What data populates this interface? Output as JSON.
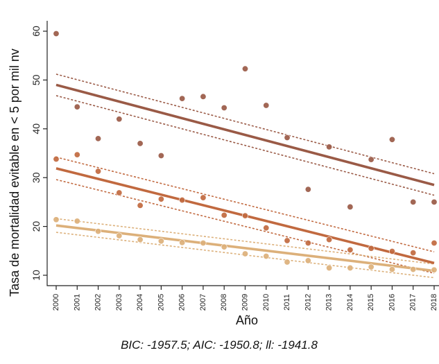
{
  "chart_data": {
    "type": "scatter",
    "title": "",
    "xlabel": "Año",
    "ylabel": "Tasa de mortalidad evitable en < 5 por mil nv",
    "footer": "BIC: -1957.5; AIC: -1950.8; ll: -1941.8",
    "x": [
      2000,
      2001,
      2002,
      2003,
      2004,
      2005,
      2006,
      2007,
      2008,
      2009,
      2010,
      2011,
      2012,
      2013,
      2014,
      2015,
      2016,
      2017,
      2018
    ],
    "xlim": [
      2000,
      2018
    ],
    "ylim": [
      8,
      62
    ],
    "yticks": [
      10,
      20,
      30,
      40,
      50,
      60
    ],
    "grid": false,
    "series": [
      {
        "color": "#9a5a46",
        "values": [
          59.5,
          44.5,
          38.0,
          42.0,
          37.0,
          34.5,
          46.2,
          46.6,
          44.3,
          52.3,
          44.8,
          38.2,
          27.6,
          36.3,
          24.0,
          33.7,
          37.8,
          25.0,
          25.0
        ],
        "fit": {
          "start": 49.0,
          "end": 28.5
        },
        "ci_upper": {
          "start": 51.2,
          "end": 30.8
        },
        "ci_lower": {
          "start": 46.8,
          "end": 26.4
        }
      },
      {
        "color": "#c1693f",
        "values": [
          33.8,
          34.7,
          31.3,
          26.9,
          24.3,
          25.6,
          25.4,
          25.9,
          22.3,
          22.2,
          19.7,
          17.1,
          16.6,
          17.3,
          15.2,
          15.5,
          14.9,
          14.6,
          16.6
        ],
        "fit": {
          "start": 31.9,
          "end": 12.5
        },
        "ci_upper": {
          "start": 34.2,
          "end": 14.8
        },
        "ci_lower": {
          "start": 29.6,
          "end": 10.4
        }
      },
      {
        "color": "#dcb07a",
        "values": [
          21.4,
          21.1,
          19.0,
          18.1,
          17.3,
          17.0,
          16.7,
          16.6,
          15.8,
          14.4,
          13.9,
          12.7,
          13.0,
          11.5,
          11.5,
          11.7,
          11.2,
          11.2,
          11.1
        ],
        "fit": {
          "start": 20.2,
          "end": 10.9
        },
        "ci_upper": {
          "start": 21.6,
          "end": 12.3
        },
        "ci_lower": {
          "start": 18.8,
          "end": 9.5
        }
      }
    ]
  }
}
